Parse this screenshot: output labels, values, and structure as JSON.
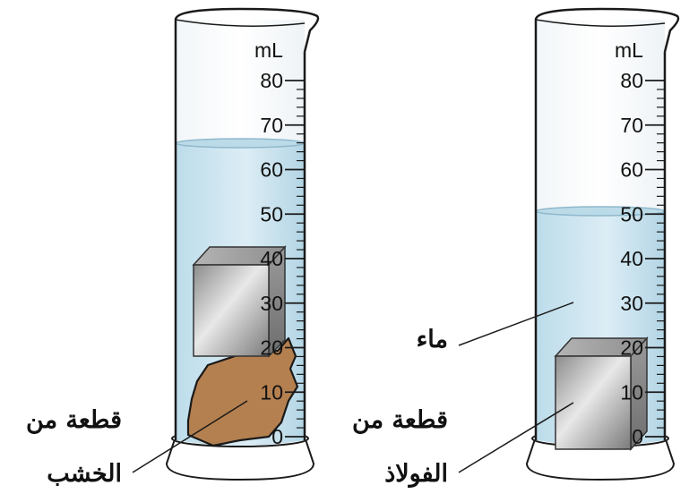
{
  "cylinders": [
    {
      "id": "left",
      "unit": "mL",
      "scale_labels": [
        "80",
        "70",
        "60",
        "50",
        "40",
        "30",
        "20",
        "10",
        "0"
      ],
      "water_level_ml": 66,
      "objects": [
        "wood-piece",
        "steel-block"
      ]
    },
    {
      "id": "right",
      "unit": "mL",
      "scale_labels": [
        "80",
        "70",
        "60",
        "50",
        "40",
        "30",
        "20",
        "10",
        "0"
      ],
      "water_level_ml": 50,
      "objects": [
        "steel-block"
      ]
    }
  ],
  "labels": {
    "wood_line1": "قطعة من",
    "wood_line2": "الخشب",
    "steel_line1": "قطعة من",
    "steel_line2": "الفولاذ",
    "water": "ماء"
  },
  "colors": {
    "water": "#cfe6f1",
    "wood": "#b5804f",
    "steel": "#a8a8a8",
    "outline": "#1a1a1a"
  }
}
